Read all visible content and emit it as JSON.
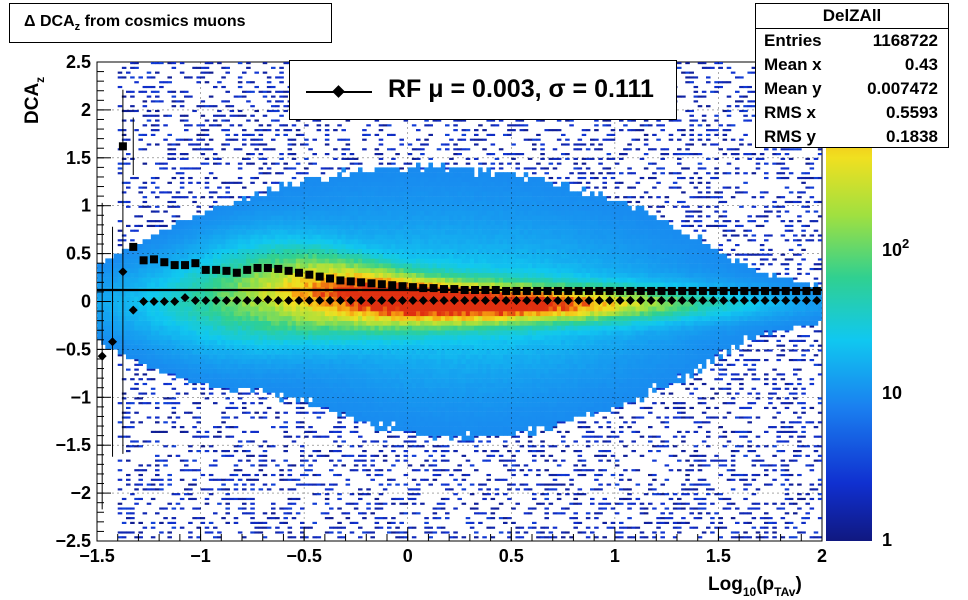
{
  "title": "Δ DCA_z from cosmics muons",
  "title_parts": {
    "delta": "Δ",
    "base": "DCA",
    "sub": "z",
    "rest": "from cosmics muons"
  },
  "stats": {
    "name": "DelZAll",
    "rows": [
      {
        "label": "Entries",
        "value": "1168722"
      },
      {
        "label": "Mean x",
        "value": "0.43"
      },
      {
        "label": "Mean y",
        "value": "0.007472"
      },
      {
        "label": "RMS x",
        "value": "0.5593"
      },
      {
        "label": "RMS y",
        "value": "0.1838"
      }
    ]
  },
  "legend": {
    "text": "RF μ =  0.003, σ =   0.111"
  },
  "chart_data": {
    "type": "heatmap",
    "xlabel": {
      "base": "Log",
      "sub1": "10",
      "open": "(p",
      "sub2": "TAv",
      "close": ")"
    },
    "ylabel": {
      "base": "DCA",
      "sub": "z"
    },
    "xlim": [
      -1.5,
      2
    ],
    "ylim": [
      -2.5,
      2.5
    ],
    "x_ticks": [
      "−1.5",
      "−1",
      "−0.5",
      "0",
      "0.5",
      "1",
      "1.5",
      "2"
    ],
    "y_ticks": [
      "−2.5",
      "−2",
      "−1.5",
      "−1",
      "−0.5",
      "0",
      "0.5",
      "1",
      "1.5",
      "2",
      "2.5"
    ],
    "colorbar": {
      "scale": "log",
      "min": 1,
      "max": 1000,
      "labels": [
        "1",
        "10",
        "10^2"
      ]
    },
    "grid": true,
    "reference_line_y": 0.12,
    "series": [
      {
        "name": "RF",
        "marker": "diamond",
        "x": [
          -1.475,
          -1.425,
          -1.375,
          -1.325,
          -1.275,
          -1.225,
          -1.175,
          -1.125,
          -1.075,
          -1.025,
          -0.975,
          -0.925,
          -0.875,
          -0.825,
          -0.775,
          -0.725,
          -0.675,
          -0.625,
          -0.575,
          -0.525,
          -0.475,
          -0.425,
          -0.375,
          -0.325,
          -0.275,
          -0.225,
          -0.175,
          -0.125,
          -0.075,
          -0.025,
          0.025,
          0.075,
          0.125,
          0.175,
          0.225,
          0.275,
          0.325,
          0.375,
          0.425,
          0.475,
          0.525,
          0.575,
          0.625,
          0.675,
          0.725,
          0.775,
          0.825,
          0.875,
          0.925,
          0.975,
          1.025,
          1.075,
          1.125,
          1.175,
          1.225,
          1.275,
          1.325,
          1.375,
          1.425,
          1.475,
          1.525,
          1.575,
          1.625,
          1.675,
          1.725,
          1.775,
          1.825,
          1.875,
          1.925,
          1.975
        ],
        "y": [
          -0.57,
          -0.42,
          0.31,
          -0.09,
          0.0,
          0.0,
          0.0,
          0.0,
          0.04,
          0.01,
          0.01,
          0.01,
          0.01,
          0.01,
          0.01,
          0.01,
          0.02,
          0.01,
          0.01,
          0.01,
          0.01,
          0.01,
          0.01,
          0.01,
          0.01,
          0.01,
          0.01,
          0.01,
          0.01,
          0.01,
          0.01,
          0.01,
          0.01,
          0.01,
          0.01,
          0.01,
          0.01,
          0.01,
          0.01,
          0.01,
          0.01,
          0.01,
          0.01,
          0.01,
          0.01,
          0.01,
          0.01,
          0.01,
          0.01,
          0.01,
          0.01,
          0.01,
          0.01,
          0.01,
          0.01,
          0.01,
          0.01,
          0.01,
          0.01,
          0.01,
          0.01,
          0.01,
          0.01,
          0.01,
          0.01,
          0.01,
          0.01,
          0.01,
          0.01,
          0.01
        ]
      },
      {
        "marker": "square",
        "x": [
          -1.375,
          -1.325,
          -1.275,
          -1.225,
          -1.175,
          -1.125,
          -1.075,
          -1.025,
          -0.975,
          -0.925,
          -0.875,
          -0.825,
          -0.775,
          -0.725,
          -0.675,
          -0.625,
          -0.575,
          -0.525,
          -0.475,
          -0.425,
          -0.375,
          -0.325,
          -0.275,
          -0.225,
          -0.175,
          -0.125,
          -0.075,
          -0.025,
          0.025,
          0.075,
          0.125,
          0.175,
          0.225,
          0.275,
          0.325,
          0.375,
          0.425,
          0.475,
          0.525,
          0.575,
          0.625,
          0.675,
          0.725,
          0.775,
          0.825,
          0.875,
          0.925,
          0.975,
          1.025,
          1.075,
          1.125,
          1.175,
          1.225,
          1.275,
          1.325,
          1.375,
          1.425,
          1.475,
          1.525,
          1.575,
          1.625,
          1.675,
          1.725,
          1.775,
          1.825,
          1.875,
          1.925,
          1.975
        ],
        "y": [
          1.62,
          0.57,
          0.43,
          0.44,
          0.41,
          0.38,
          0.38,
          0.4,
          0.33,
          0.33,
          0.32,
          0.3,
          0.33,
          0.35,
          0.35,
          0.34,
          0.32,
          0.3,
          0.28,
          0.26,
          0.24,
          0.22,
          0.21,
          0.2,
          0.19,
          0.18,
          0.17,
          0.16,
          0.15,
          0.14,
          0.14,
          0.13,
          0.13,
          0.12,
          0.12,
          0.12,
          0.12,
          0.11,
          0.11,
          0.11,
          0.11,
          0.11,
          0.11,
          0.11,
          0.11,
          0.11,
          0.11,
          0.11,
          0.11,
          0.11,
          0.11,
          0.11,
          0.11,
          0.11,
          0.11,
          0.11,
          0.11,
          0.11,
          0.11,
          0.11,
          0.11,
          0.11,
          0.11,
          0.11,
          0.11,
          0.11,
          0.11,
          0.11
        ]
      }
    ]
  }
}
